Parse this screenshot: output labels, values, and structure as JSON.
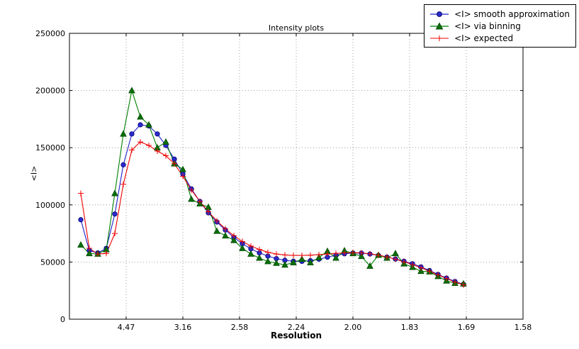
{
  "chart": {
    "title": "Intensity plots",
    "xlabel": "Resolution",
    "ylabel": "<I>"
  },
  "chart_data": {
    "type": "line",
    "title": "Intensity plots",
    "xlabel": "Resolution",
    "ylabel": "<I>",
    "axis_note": "x positions are in 1/d^2 units; tick labels show resolution d",
    "xlim": [
      0,
      0.4
    ],
    "ylim": [
      0,
      250000
    ],
    "grid": "dotted",
    "legend_position": "top-right-outside",
    "x": [
      0.01,
      0.0175,
      0.025,
      0.0325,
      0.04,
      0.0475,
      0.055,
      0.0625,
      0.07,
      0.0775,
      0.085,
      0.0925,
      0.1,
      0.1075,
      0.115,
      0.1225,
      0.13,
      0.1375,
      0.145,
      0.1525,
      0.16,
      0.1675,
      0.175,
      0.1825,
      0.19,
      0.1975,
      0.205,
      0.2125,
      0.22,
      0.2275,
      0.235,
      0.2425,
      0.25,
      0.2575,
      0.265,
      0.2725,
      0.28,
      0.2875,
      0.295,
      0.3025,
      0.31,
      0.3175,
      0.325,
      0.3325,
      0.34,
      0.3475
    ],
    "series": [
      {
        "name": "<I> smooth approximation",
        "color": "#2020cc",
        "marker": "circle",
        "marker_fill": "#2a2ad0",
        "marker_edge": "#000070",
        "values": [
          87000,
          60000,
          58000,
          62000,
          92000,
          135000,
          162000,
          170000,
          169000,
          162000,
          152000,
          140000,
          127000,
          114000,
          103000,
          93000,
          85000,
          78000,
          71500,
          66000,
          61500,
          58000,
          55200,
          53000,
          51500,
          50700,
          50600,
          51200,
          52500,
          54200,
          55900,
          57200,
          57900,
          57800,
          57000,
          55800,
          54300,
          52600,
          50700,
          48500,
          45800,
          42600,
          39200,
          36000,
          33000,
          30500
        ]
      },
      {
        "name": "<I> via binning",
        "color": "#008000",
        "marker": "triangle",
        "marker_fill": "#0a6e0a",
        "marker_edge": "#054d05",
        "values": [
          65000,
          57500,
          57000,
          61000,
          110000,
          162000,
          200000,
          177000,
          170000,
          150000,
          155000,
          136000,
          131000,
          105000,
          101000,
          98000,
          77000,
          73000,
          69000,
          62000,
          57000,
          53500,
          50500,
          49000,
          47500,
          49500,
          52500,
          49500,
          54000,
          59500,
          53500,
          60000,
          57500,
          55000,
          46500,
          56000,
          53500,
          57500,
          48500,
          45500,
          42000,
          41500,
          37500,
          33500,
          31500,
          31000
        ]
      },
      {
        "name": "<I> expected",
        "color": "#ee0000",
        "marker": "plus",
        "marker_fill": "#ee0000",
        "marker_edge": "#ee0000",
        "values": [
          110000,
          62000,
          57000,
          57500,
          75000,
          118000,
          148000,
          155000,
          152000,
          147000,
          143000,
          136000,
          125000,
          113000,
          103000,
          94000,
          86000,
          79000,
          73000,
          68000,
          64000,
          61000,
          58500,
          57000,
          56200,
          55800,
          55800,
          56000,
          56500,
          57000,
          57500,
          58000,
          58200,
          58000,
          57200,
          56000,
          54500,
          52500,
          50200,
          47800,
          45000,
          42000,
          38800,
          35600,
          32500,
          30000
        ]
      }
    ],
    "xticks": {
      "positions": [
        0.05,
        0.1,
        0.15,
        0.2,
        0.25,
        0.3,
        0.35,
        0.4
      ],
      "labels": [
        "4.47",
        "3.16",
        "2.58",
        "2.24",
        "2.00",
        "1.83",
        "1.69",
        "1.58"
      ]
    },
    "yticks": {
      "values": [
        0,
        50000,
        100000,
        150000,
        200000,
        250000
      ],
      "labels": [
        "0",
        "50000",
        "100000",
        "150000",
        "200000",
        "250000"
      ]
    }
  }
}
